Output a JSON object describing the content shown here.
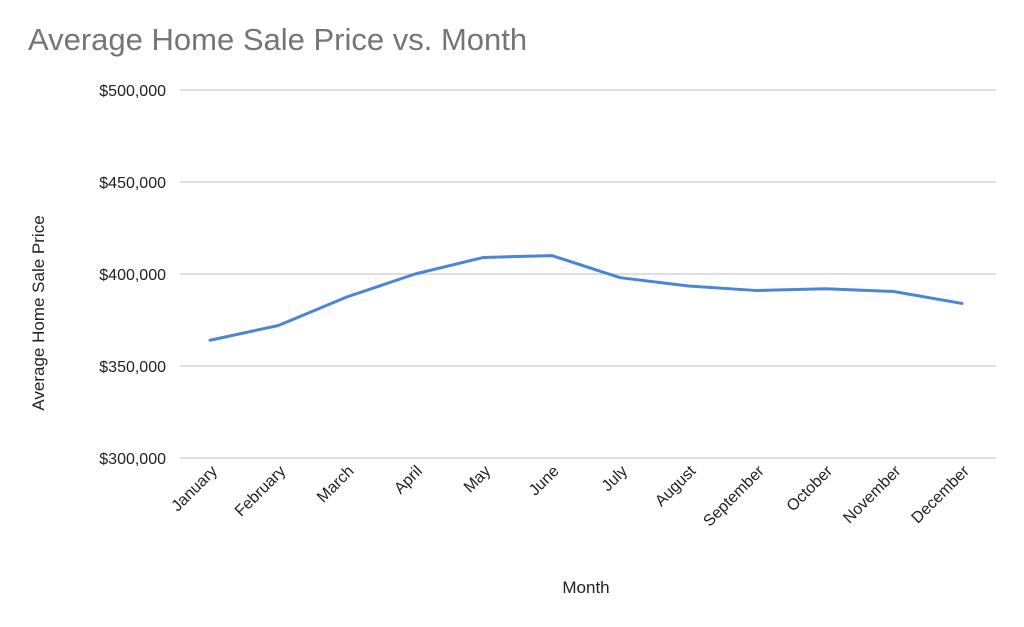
{
  "chart_data": {
    "type": "line",
    "title": "Average Home Sale Price vs. Month",
    "xlabel": "Month",
    "ylabel": "Average Home Sale Price",
    "ylim": [
      300000,
      500000
    ],
    "yticks": [
      "$300,000",
      "$350,000",
      "$400,000",
      "$450,000",
      "$500,000"
    ],
    "ytick_values": [
      300000,
      350000,
      400000,
      450000,
      500000
    ],
    "grid": true,
    "legend": null,
    "categories": [
      "January",
      "February",
      "March",
      "April",
      "May",
      "June",
      "July",
      "August",
      "September",
      "October",
      "November",
      "December"
    ],
    "series": [
      {
        "name": "Average Home Sale Price",
        "color": "#4a86d8",
        "values": [
          364000,
          372000,
          387500,
          400000,
          409000,
          410000,
          398000,
          393500,
          391000,
          392000,
          390500,
          384000
        ]
      }
    ]
  },
  "colors": {
    "line": "#4a86d8",
    "grid": "#cccccc",
    "title": "#757575",
    "text": "#222222"
  }
}
